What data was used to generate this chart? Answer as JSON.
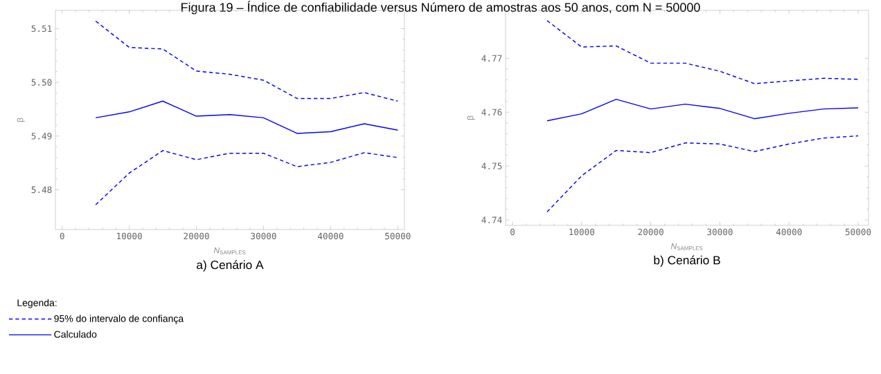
{
  "chart_data": [
    {
      "type": "line",
      "title": "Figura 19 – Índice de confiabilidade versus Número de amostras aos 50 anos, com N = 50000",
      "xlabel": "*N*$_{SAMPLES}$",
      "ylabel": "β",
      "legend_title": "Legenda:",
      "legend": "bottom left",
      "annotations": [
        "a)   Cenário A"
      ],
      "x": [
        5000,
        10000,
        15000,
        20000,
        25000,
        30000,
        35000,
        40000,
        45000,
        50000
      ],
      "xlim": [
        -1000,
        51000
      ],
      "xticks": [
        0,
        10000,
        20000,
        30000,
        40000,
        50000
      ],
      "ylim": [
        5.4726,
        5.5134
      ],
      "yticks": [
        5.48,
        5.49,
        {
          "value": 5.5,
          "label": "5.50"
        },
        5.51
      ],
      "series": [
        {
          "name": "95% do intervalo de confiança",
          "color": "#0000ff",
          "line_style": "dashed",
          "values": [
            5.5114,
            5.5065,
            5.5062,
            5.5021,
            5.5015,
            5.5004,
            5.497,
            5.497,
            5.4981,
            5.4965
          ]
        },
        {
          "name": "Calculado",
          "color": "#0000ff",
          "line_style": "solid",
          "values": [
            5.4934,
            5.4945,
            5.4965,
            5.4937,
            5.494,
            5.4934,
            5.4905,
            5.4908,
            5.4923,
            5.4911
          ]
        },
        {
          "color": "#0000ff",
          "line_style": "dashed",
          "values": [
            5.4772,
            5.4831,
            5.4873,
            5.4856,
            5.4868,
            5.4868,
            5.4843,
            5.4851,
            5.4869,
            5.486
          ]
        }
      ]
    },
    {
      "type": "line",
      "xlabel": "*N*$_{SAMPLES}$",
      "ylabel": "β",
      "annotations": [
        "b)   Cenário B"
      ],
      "x": [
        5000,
        10000,
        15000,
        20000,
        25000,
        30000,
        35000,
        40000,
        45000,
        50000
      ],
      "xlim": [
        -1000,
        51500
      ],
      "xticks": [
        0,
        10000,
        20000,
        30000,
        40000,
        50000
      ],
      "ylim": [
        4.739,
        4.7789
      ],
      "yticks": [
        4.74,
        4.75,
        4.76,
        4.77
      ],
      "series": [
        {
          "color": "#0000ff",
          "line_style": "dashed",
          "values": [
            4.777,
            4.7721,
            4.7723,
            4.7691,
            4.7691,
            4.7676,
            4.7653,
            4.7658,
            4.7663,
            4.7661
          ]
        },
        {
          "color": "#0000ff",
          "line_style": "solid",
          "values": [
            4.7584,
            4.7597,
            4.7624,
            4.7606,
            4.7615,
            4.7607,
            4.7588,
            4.7598,
            4.7606,
            4.7608
          ]
        },
        {
          "color": "#0000ff",
          "line_style": "dashed",
          "values": [
            4.7415,
            4.7482,
            4.7529,
            4.7525,
            4.7543,
            4.7541,
            4.7527,
            4.7541,
            4.7552,
            4.7556
          ]
        }
      ]
    }
  ]
}
